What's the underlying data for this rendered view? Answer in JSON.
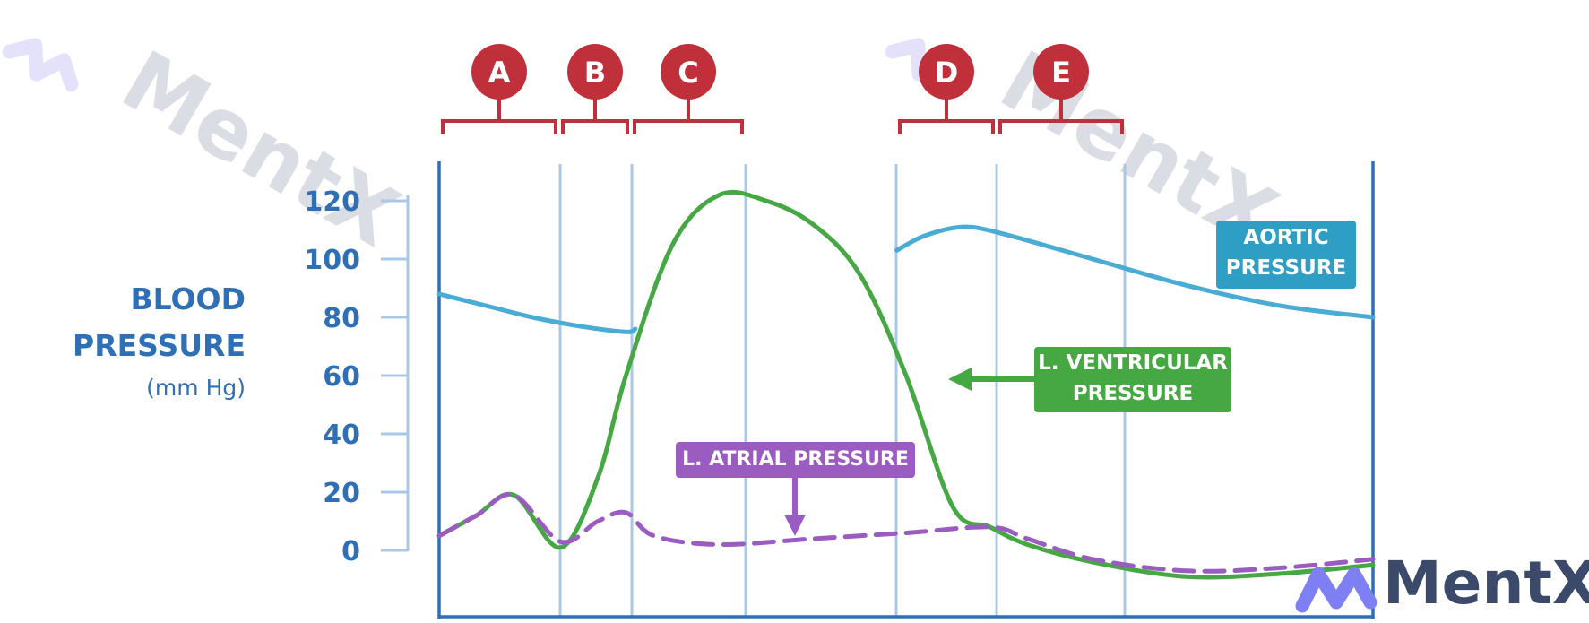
{
  "y_axis": {
    "title_line1": "BLOOD",
    "title_line2": "PRESSURE",
    "unit": "(mm Hg)",
    "ticks": [
      "120",
      "100",
      "80",
      "60",
      "40",
      "20",
      "0"
    ]
  },
  "phases": [
    "A",
    "B",
    "C",
    "D",
    "E"
  ],
  "labels": {
    "aortic_line1": "AORTIC",
    "aortic_line2": "PRESSURE",
    "ventricular_line1": "L. VENTRICULAR",
    "ventricular_line2": "PRESSURE",
    "atrial": "L. ATRIAL PRESSURE"
  },
  "colors": {
    "axis": "#2f6fb5",
    "grid": "#a9c8e8",
    "aortic": "#4aacd4",
    "ventricular": "#46a843",
    "atrial": "#9a5cc0",
    "phase": "#c0303a",
    "aortic_box": "#2f9ec4",
    "ventricular_box": "#46a843",
    "atrial_box": "#9a5cc0"
  },
  "watermark": {
    "brand": "MentX"
  },
  "chart_data": {
    "type": "line",
    "ylabel": "BLOOD PRESSURE (mm Hg)",
    "ylim": [
      0,
      120
    ],
    "yticks": [
      0,
      20,
      40,
      60,
      80,
      100,
      120
    ],
    "series": [
      {
        "name": "AORTIC PRESSURE",
        "x": [
          0,
          0.05,
          0.1,
          0.15,
          0.2,
          0.21,
          0.49,
          0.52,
          0.56,
          0.6,
          0.7,
          0.8,
          0.9,
          1.0
        ],
        "y": [
          88,
          84,
          80,
          77,
          75,
          76,
          103,
          108,
          111,
          109,
          100,
          91,
          84,
          80
        ]
      },
      {
        "name": "L. VENTRICULAR PRESSURE",
        "x": [
          0,
          0.04,
          0.08,
          0.13,
          0.17,
          0.2,
          0.25,
          0.3,
          0.35,
          0.4,
          0.45,
          0.5,
          0.55,
          0.59,
          0.63,
          0.7,
          0.8,
          0.9,
          1.0
        ],
        "y": [
          5,
          12,
          19,
          1,
          25,
          60,
          105,
          122,
          120,
          112,
          95,
          60,
          15,
          8,
          2,
          -4,
          -9,
          -8,
          -5
        ]
      },
      {
        "name": "L. ATRIAL PRESSURE",
        "x": [
          0,
          0.04,
          0.08,
          0.13,
          0.17,
          0.2,
          0.23,
          0.3,
          0.4,
          0.5,
          0.59,
          0.63,
          0.7,
          0.8,
          0.9,
          1.0
        ],
        "y": [
          5,
          12,
          19,
          3,
          10,
          13,
          5,
          2,
          4,
          6,
          8,
          4,
          -3,
          -7,
          -6,
          -3
        ]
      }
    ]
  }
}
